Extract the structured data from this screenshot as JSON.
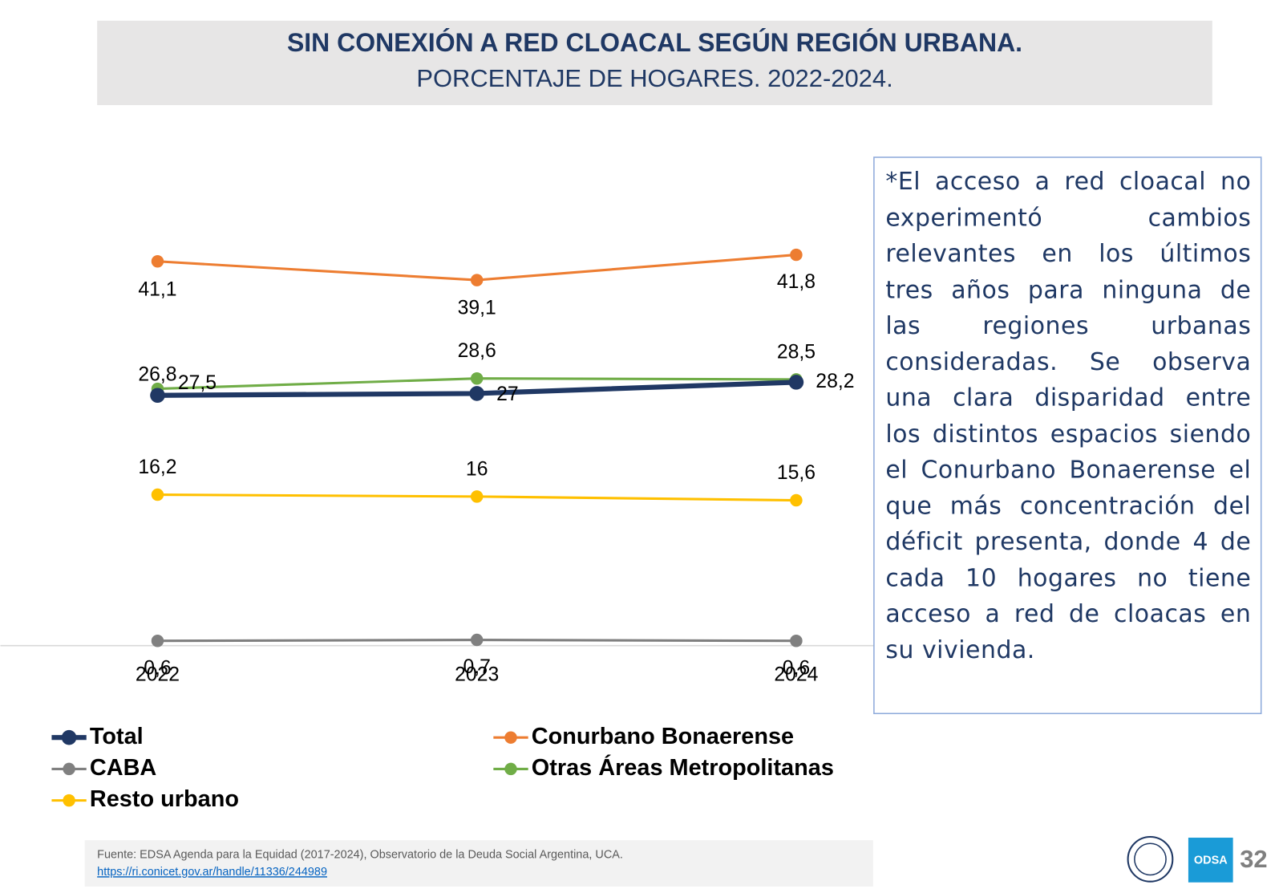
{
  "chart_data": {
    "type": "line",
    "title": "SIN CONEXIÓN A RED CLOACAL SEGÚN REGIÓN URBANA.",
    "subtitle": "PORCENTAJE DE HOGARES. 2022-2024.",
    "categories": [
      "2022",
      "2023",
      "2024"
    ],
    "ylim": [
      0,
      50
    ],
    "series": [
      {
        "name": "Total",
        "color": "#203864",
        "values": [
          26.8,
          27,
          28.2
        ],
        "value_labels": [
          "26,8",
          "27",
          "28,2"
        ]
      },
      {
        "name": "Conurbano Bonaerense",
        "color": "#ed7d31",
        "values": [
          41.1,
          39.1,
          41.8
        ],
        "value_labels": [
          "41,1",
          "39,1",
          "41,8"
        ]
      },
      {
        "name": "CABA",
        "color": "#808080",
        "values": [
          0.6,
          0.7,
          0.6
        ],
        "value_labels": [
          "0,6",
          "0,7",
          "0,6"
        ]
      },
      {
        "name": "Otras Áreas Metropolitanas",
        "color": "#70ad47",
        "values": [
          27.5,
          28.6,
          28.5
        ],
        "value_labels": [
          "27,5",
          "28,6",
          "28,5"
        ]
      },
      {
        "name": "Resto urbano",
        "color": "#ffc000",
        "values": [
          16.2,
          16,
          15.6
        ],
        "value_labels": [
          "16,2",
          "16",
          "15,6"
        ]
      }
    ]
  },
  "note": "*El acceso a red cloacal no experimentó cambios relevantes en los últimos tres años para ninguna de las regiones urbanas consideradas. Se observa una clara disparidad entre los distintos espacios siendo el Conurbano Bonaerense el que más concentración del déficit presenta, donde 4 de cada 10 hogares no tiene acceso a red de cloacas en su vivienda.",
  "source": "Fuente: EDSA Agenda para la Equidad (2017-2024), Observatorio de la Deuda Social Argentina, UCA.",
  "source_url": "https://ri.conicet.gov.ar/handle/11336/244989",
  "logo": "ODSA",
  "page_number": "32"
}
